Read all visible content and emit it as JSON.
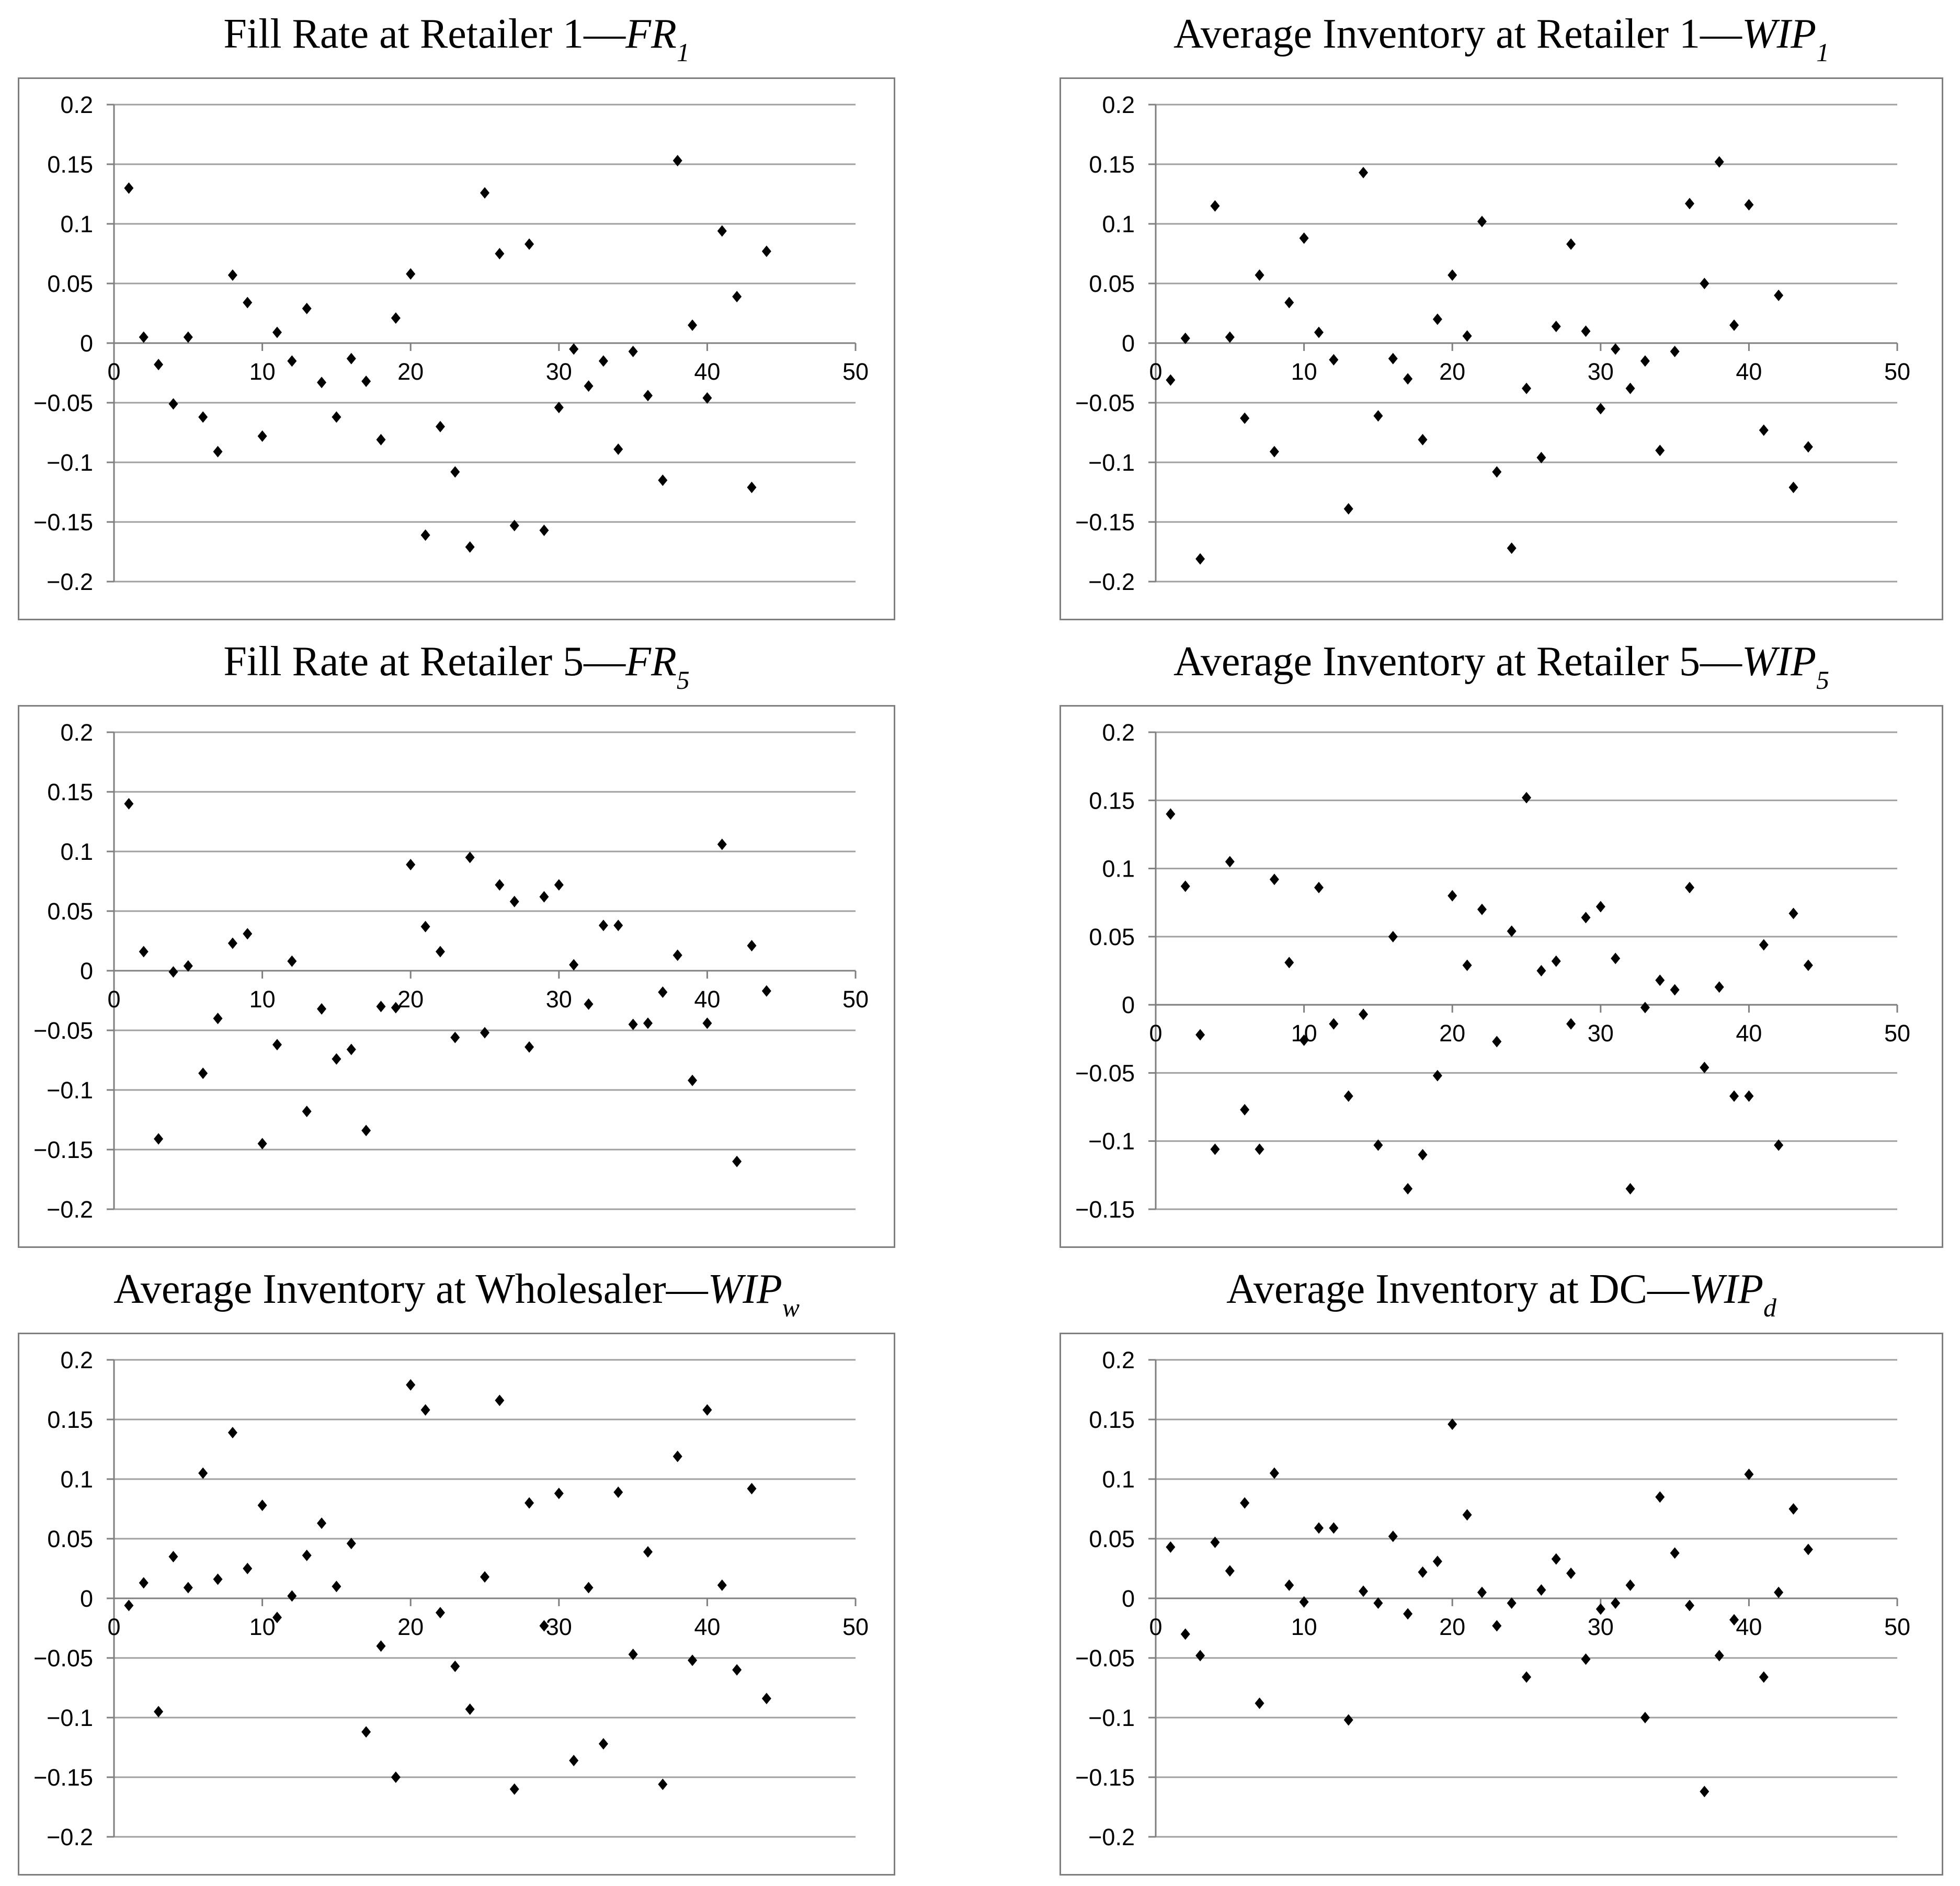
{
  "styles": {
    "background": "#ffffff",
    "marker_color": "#000000",
    "gridline_color": "#a0a0a0",
    "axis_color": "#7f7f7f",
    "box_border_color": "#7f7f7f",
    "text_color": "#000000"
  },
  "chart_data": [
    {
      "type": "scatter",
      "title_prefix": "Fill Rate at Retailer 1",
      "title_dash": "—",
      "title_symbol": "FR",
      "title_subscript": "1",
      "xlabel": "",
      "ylabel": "",
      "xlim": [
        0,
        50
      ],
      "ylim": [
        -0.2,
        0.2
      ],
      "x_ticks": [
        0,
        10,
        20,
        30,
        40,
        50
      ],
      "y_ticks": [
        0.2,
        0.15,
        0.1,
        0.05,
        0,
        -0.05,
        -0.1,
        -0.15,
        -0.2
      ],
      "grid": "horizontal",
      "legend": "none",
      "marker": "diamond",
      "x": [
        1,
        2,
        3,
        4,
        5,
        6,
        7,
        8,
        9,
        10,
        11,
        12,
        13,
        14,
        15,
        16,
        17,
        18,
        19,
        20,
        21,
        22,
        23,
        24,
        25,
        26,
        27,
        28,
        29,
        30,
        31,
        32,
        33,
        34,
        35,
        36,
        37,
        38,
        39,
        40,
        41,
        42,
        43,
        44
      ],
      "y": [
        0.13,
        0.005,
        -0.018,
        -0.051,
        0.005,
        -0.062,
        -0.091,
        0.057,
        0.034,
        -0.078,
        0.009,
        -0.015,
        0.029,
        -0.033,
        -0.062,
        -0.013,
        -0.032,
        -0.081,
        0.021,
        0.058,
        -0.161,
        -0.07,
        -0.108,
        -0.171,
        0.126,
        0.075,
        -0.153,
        0.083,
        -0.157,
        -0.054,
        -0.005,
        -0.036,
        -0.015,
        -0.089,
        -0.007,
        -0.044,
        -0.115,
        0.153,
        0.015,
        -0.046,
        0.094,
        0.039,
        -0.121,
        0.077
      ]
    },
    {
      "type": "scatter",
      "title_prefix": "Average Inventory at Retailer 1",
      "title_dash": "—",
      "title_symbol": "WIP",
      "title_subscript": "1",
      "xlabel": "",
      "ylabel": "",
      "xlim": [
        0,
        50
      ],
      "ylim": [
        -0.2,
        0.2
      ],
      "x_ticks": [
        0,
        10,
        20,
        30,
        40,
        50
      ],
      "y_ticks": [
        0.2,
        0.15,
        0.1,
        0.05,
        0,
        -0.05,
        -0.1,
        -0.15,
        -0.2
      ],
      "grid": "horizontal",
      "legend": "none",
      "marker": "diamond",
      "x": [
        1,
        2,
        3,
        4,
        5,
        6,
        7,
        8,
        9,
        10,
        11,
        12,
        13,
        14,
        15,
        16,
        17,
        18,
        19,
        20,
        21,
        22,
        23,
        24,
        25,
        26,
        27,
        28,
        29,
        30,
        31,
        32,
        33,
        34,
        35,
        36,
        37,
        38,
        39,
        40,
        41,
        42,
        43,
        44
      ],
      "y": [
        -0.031,
        0.004,
        -0.181,
        0.115,
        0.005,
        -0.063,
        0.057,
        -0.091,
        0.034,
        0.088,
        0.009,
        -0.014,
        -0.139,
        0.143,
        -0.061,
        -0.013,
        -0.03,
        -0.081,
        0.02,
        0.057,
        0.006,
        0.102,
        -0.108,
        -0.172,
        -0.038,
        -0.096,
        0.014,
        0.083,
        0.01,
        -0.055,
        -0.005,
        -0.038,
        -0.015,
        -0.09,
        -0.007,
        0.117,
        0.05,
        0.152,
        0.015,
        0.116,
        -0.073,
        0.04,
        -0.121,
        -0.087
      ]
    },
    {
      "type": "scatter",
      "title_prefix": "Fill Rate at Retailer 5",
      "title_dash": "—",
      "title_symbol": "FR",
      "title_subscript": "5",
      "xlabel": "",
      "ylabel": "",
      "xlim": [
        0,
        50
      ],
      "ylim": [
        -0.2,
        0.2
      ],
      "x_ticks": [
        0,
        10,
        20,
        30,
        40,
        50
      ],
      "y_ticks": [
        0.2,
        0.15,
        0.1,
        0.05,
        0,
        -0.05,
        -0.1,
        -0.15,
        -0.2
      ],
      "grid": "horizontal",
      "legend": "none",
      "marker": "diamond",
      "x": [
        1,
        2,
        3,
        4,
        5,
        6,
        7,
        8,
        9,
        10,
        11,
        12,
        13,
        14,
        15,
        16,
        17,
        18,
        19,
        20,
        21,
        22,
        23,
        24,
        25,
        26,
        27,
        28,
        29,
        30,
        31,
        32,
        33,
        34,
        35,
        36,
        37,
        38,
        39,
        40,
        41,
        42,
        43,
        44
      ],
      "y": [
        0.14,
        0.016,
        -0.141,
        -0.001,
        0.004,
        -0.086,
        -0.04,
        0.023,
        0.031,
        -0.145,
        -0.062,
        0.008,
        -0.118,
        -0.032,
        -0.074,
        -0.066,
        -0.134,
        -0.03,
        -0.031,
        0.089,
        0.037,
        0.016,
        -0.056,
        0.095,
        -0.052,
        0.072,
        0.058,
        -0.064,
        0.062,
        0.072,
        0.005,
        -0.028,
        0.038,
        0.038,
        -0.045,
        -0.044,
        -0.018,
        0.013,
        -0.092,
        -0.044,
        0.106,
        -0.16,
        0.021,
        -0.017
      ]
    },
    {
      "type": "scatter",
      "title_prefix": "Average Inventory at Retailer 5",
      "title_dash": "—",
      "title_symbol": "WIP",
      "title_subscript": "5",
      "xlabel": "",
      "ylabel": "",
      "xlim": [
        0,
        50
      ],
      "ylim": [
        -0.15,
        0.2
      ],
      "x_ticks": [
        0,
        10,
        20,
        30,
        40,
        50
      ],
      "y_ticks": [
        0.2,
        0.15,
        0.1,
        0.05,
        0,
        -0.05,
        -0.1,
        -0.15
      ],
      "grid": "horizontal",
      "legend": "none",
      "marker": "diamond",
      "x": [
        1,
        2,
        3,
        4,
        5,
        6,
        7,
        8,
        9,
        10,
        11,
        12,
        13,
        14,
        15,
        16,
        17,
        18,
        19,
        20,
        21,
        22,
        23,
        24,
        25,
        26,
        27,
        28,
        29,
        30,
        31,
        32,
        33,
        34,
        35,
        36,
        37,
        38,
        39,
        40,
        41,
        42,
        43,
        44
      ],
      "y": [
        0.14,
        0.087,
        -0.022,
        -0.106,
        0.105,
        -0.077,
        -0.106,
        0.092,
        0.031,
        -0.026,
        0.086,
        -0.014,
        -0.067,
        -0.007,
        -0.103,
        0.05,
        -0.135,
        -0.11,
        -0.052,
        0.08,
        0.029,
        0.07,
        -0.027,
        0.054,
        0.152,
        0.025,
        0.032,
        -0.014,
        0.064,
        0.072,
        0.034,
        -0.135,
        -0.002,
        0.018,
        0.011,
        0.086,
        -0.046,
        0.013,
        -0.067,
        -0.067,
        0.044,
        -0.103,
        0.067,
        0.029
      ]
    },
    {
      "type": "scatter",
      "title_prefix": "Average Inventory at Wholesaler",
      "title_dash": "—",
      "title_symbol": "WIP",
      "title_subscript": "w",
      "xlabel": "",
      "ylabel": "",
      "xlim": [
        0,
        50
      ],
      "ylim": [
        -0.2,
        0.2
      ],
      "x_ticks": [
        0,
        10,
        20,
        30,
        40,
        50
      ],
      "y_ticks": [
        0.2,
        0.15,
        0.1,
        0.05,
        0,
        -0.05,
        -0.1,
        -0.15,
        -0.2
      ],
      "grid": "horizontal",
      "legend": "none",
      "marker": "diamond",
      "x": [
        1,
        2,
        3,
        4,
        5,
        6,
        7,
        8,
        9,
        10,
        11,
        12,
        13,
        14,
        15,
        16,
        17,
        18,
        19,
        20,
        21,
        22,
        23,
        24,
        25,
        26,
        27,
        28,
        29,
        30,
        31,
        32,
        33,
        34,
        35,
        36,
        37,
        38,
        39,
        40,
        41,
        42,
        43,
        44
      ],
      "y": [
        -0.006,
        0.013,
        -0.095,
        0.035,
        0.009,
        0.105,
        0.016,
        0.139,
        0.025,
        0.078,
        -0.016,
        0.002,
        0.036,
        0.063,
        0.01,
        0.046,
        -0.112,
        -0.04,
        -0.15,
        0.179,
        0.158,
        -0.012,
        -0.057,
        -0.093,
        0.018,
        0.166,
        -0.16,
        0.08,
        -0.023,
        0.088,
        -0.136,
        0.009,
        -0.122,
        0.089,
        -0.047,
        0.039,
        -0.156,
        0.119,
        -0.052,
        0.158,
        0.011,
        -0.06,
        0.092,
        -0.084
      ]
    },
    {
      "type": "scatter",
      "title_prefix": "Average Inventory at DC",
      "title_dash": "—",
      "title_symbol": "WIP",
      "title_subscript": "d",
      "xlabel": "",
      "ylabel": "",
      "xlim": [
        0,
        50
      ],
      "ylim": [
        -0.2,
        0.2
      ],
      "x_ticks": [
        0,
        10,
        20,
        30,
        40,
        50
      ],
      "y_ticks": [
        0.2,
        0.15,
        0.1,
        0.05,
        0,
        -0.05,
        -0.1,
        -0.15,
        -0.2
      ],
      "grid": "horizontal",
      "legend": "none",
      "marker": "diamond",
      "x": [
        1,
        2,
        3,
        4,
        5,
        6,
        7,
        8,
        9,
        10,
        11,
        12,
        13,
        14,
        15,
        16,
        17,
        18,
        19,
        20,
        21,
        22,
        23,
        24,
        25,
        26,
        27,
        28,
        29,
        30,
        31,
        32,
        33,
        34,
        35,
        36,
        37,
        38,
        39,
        40,
        41,
        42,
        43,
        44
      ],
      "y": [
        0.043,
        -0.03,
        -0.048,
        0.047,
        0.023,
        0.08,
        -0.088,
        0.105,
        0.011,
        -0.003,
        0.059,
        0.059,
        -0.102,
        0.006,
        -0.004,
        0.052,
        -0.013,
        0.022,
        0.031,
        0.146,
        0.07,
        0.005,
        -0.023,
        -0.004,
        -0.066,
        0.007,
        0.033,
        0.021,
        -0.051,
        -0.009,
        -0.004,
        0.011,
        -0.1,
        0.085,
        0.038,
        -0.006,
        -0.162,
        -0.048,
        -0.018,
        0.104,
        -0.066,
        0.005,
        0.075,
        0.041
      ]
    }
  ]
}
